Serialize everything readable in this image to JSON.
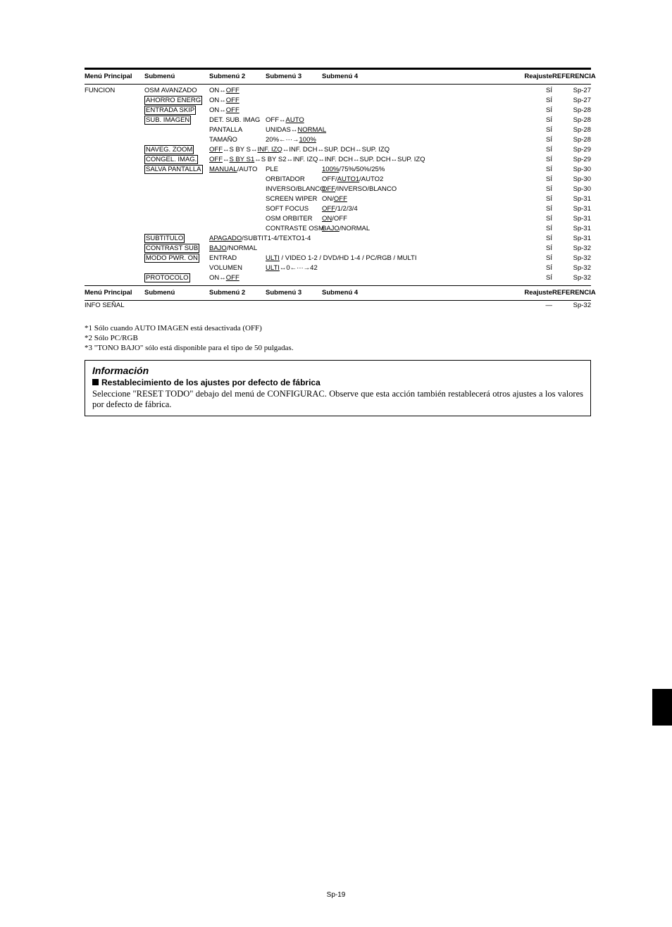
{
  "headers": {
    "c1": "Menú Principal",
    "c2": "Submenú",
    "c3": "Submenú 2",
    "c4": "Submenú 3",
    "c5": "Submenú 4",
    "c6": "Reajuste",
    "c7": "REFERENCIA"
  },
  "funcion_label": "FUNCION",
  "rows": [
    {
      "sub": "OSM AVANZADO",
      "box": false,
      "s2_html": "ON↔<span class='u'>OFF</span>",
      "s3_html": "",
      "s4_html": "",
      "re": "SÍ",
      "ref": "Sp-27"
    },
    {
      "sub": "AHORRO ENERG",
      "box": true,
      "s2_html": "ON↔<span class='u'>OFF</span>",
      "s3_html": "",
      "s4_html": "",
      "re": "SÍ",
      "ref": "Sp-27"
    },
    {
      "sub": "ENTRADA SKIP",
      "box": true,
      "s2_html": "ON↔<span class='u'>OFF</span>",
      "s3_html": "",
      "s4_html": "",
      "re": "SÍ",
      "ref": "Sp-28"
    },
    {
      "sub": "SUB. IMAGEN",
      "box": true,
      "s2_html": "DET. SUB. IMAG",
      "s3_html": "OFF↔<span class='u'>AUTO</span>",
      "s4_html": "",
      "re": "SÍ",
      "ref": "Sp-28"
    },
    {
      "sub": "",
      "box": false,
      "s2_html": "PANTALLA",
      "s3_html": "UNIDAS↔<span class='u'>NORMAL</span>",
      "s4_html": "",
      "re": "SÍ",
      "ref": "Sp-28"
    },
    {
      "sub": "",
      "box": false,
      "s2_html": "TAMAÑO",
      "s3_html": "20%←···→<span class='u'>100%</span>",
      "s4_html": "",
      "re": "SÍ",
      "ref": "Sp-28"
    },
    {
      "sub": "NAVEG. ZOOM",
      "box": true,
      "s2_html": "",
      "s3_html": "",
      "s4_html": "<span class='u'>OFF</span>↔S BY S↔<span class='u'>INF. IZQ</span>↔INF. DCH↔SUP. DCH↔SUP. IZQ",
      "re": "SÍ",
      "ref": "Sp-29",
      "wide": true
    },
    {
      "sub": "CONGEL. IMAG.",
      "box": true,
      "s2_html": "",
      "s3_html": "",
      "s4_html": "<span class='u'>OFF</span>↔<span class='u'>S BY S1</span>↔S BY S2↔INF. IZQ↔INF. DCH↔SUP. DCH↔SUP. IZQ",
      "re": "SÍ",
      "ref": "Sp-29",
      "wide": true
    },
    {
      "sub": "SALVA PANTALLA",
      "box": true,
      "s2_html": "<span class='u'>MANUAL</span>/AUTO",
      "s3_html": "PLE",
      "s4_html": "<span class='u'>100%</span>/75%/50%/25%",
      "re": "SÍ",
      "ref": "Sp-30"
    },
    {
      "sub": "",
      "box": false,
      "s2_html": "",
      "s3_html": "ORBITADOR",
      "s4_html": "OFF/<span class='u'>AUTO1</span>/AUTO2",
      "re": "SÍ",
      "ref": "Sp-30"
    },
    {
      "sub": "",
      "box": false,
      "s2_html": "",
      "s3_html": "INVERSO/BLANCO",
      "s4_html": "<span class='u'>OFF</span>/INVERSO/BLANCO",
      "re": "SÍ",
      "ref": "Sp-30"
    },
    {
      "sub": "",
      "box": false,
      "s2_html": "",
      "s3_html": "SCREEN WIPER",
      "s4_html": "ON/<span class='u'>OFF</span>",
      "re": "SÍ",
      "ref": "Sp-31"
    },
    {
      "sub": "",
      "box": false,
      "s2_html": "",
      "s3_html": "SOFT FOCUS",
      "s4_html": "<span class='u'>OFF</span>/1/2/3/4",
      "re": "SÍ",
      "ref": "Sp-31"
    },
    {
      "sub": "",
      "box": false,
      "s2_html": "",
      "s3_html": "OSM ORBITER",
      "s4_html": "<span class='u'>ON</span>/OFF",
      "re": "SÍ",
      "ref": "Sp-31"
    },
    {
      "sub": "",
      "box": false,
      "s2_html": "",
      "s3_html": "CONTRASTE OSM",
      "s4_html": "<span class='u'>BAJO</span>/NORMAL",
      "re": "SÍ",
      "ref": "Sp-31"
    },
    {
      "sub": "SUBTITULO",
      "box": true,
      "s2_html": "<span class='u'>APAGADO</span>/SUBTIT1-4/TEXTO1-4",
      "s3_html": "",
      "s4_html": "",
      "re": "SÍ",
      "ref": "Sp-31",
      "merge23": true
    },
    {
      "sub": "CONTRAST SUB",
      "box": true,
      "s2_html": "<span class='u'>BAJO</span>/NORMAL",
      "s3_html": "",
      "s4_html": "",
      "re": "SÍ",
      "ref": "Sp-32"
    },
    {
      "sub": "MODO PWR. ON",
      "box": true,
      "s2_html": "ENTRAD",
      "s3_html": "",
      "s4_html": "<span class='u'>ULTI</span> / VIDEO 1-2 / DVD/HD 1-4 / PC/RGB / MULTI",
      "re": "SÍ",
      "ref": "Sp-32",
      "merge34": true
    },
    {
      "sub": "",
      "box": false,
      "s2_html": "VOLUMEN",
      "s3_html": "<span class='u'>ULTI</span>↔0←···→42",
      "s4_html": "",
      "re": "SÍ",
      "ref": "Sp-32",
      "merge34": true
    },
    {
      "sub": "PROTOCOLO",
      "box": true,
      "s2_html": "ON↔<span class='u'>OFF</span>",
      "s3_html": "",
      "s4_html": "",
      "re": "SÍ",
      "ref": "Sp-32"
    }
  ],
  "info_senal": {
    "label": "INFO SEÑAL",
    "re": "—",
    "ref": "Sp-32"
  },
  "notes": [
    "*1  Sólo cuando AUTO IMAGEN está desactivada (OFF)",
    "*2  Sólo PC/RGB",
    "*3  \"TONO BAJO\" sólo está disponible para el tipo de 50 pulgadas."
  ],
  "infobox": {
    "heading": "Información",
    "subheading": "Restablecimiento de los ajustes por defecto de fábrica",
    "body": "Seleccione \"RESET TODO\" debajo del menú de CONFIGURAC. Observe que esta acción también restablecerá otros ajustes a los valores por defecto de fábrica."
  },
  "footer": "Sp-19"
}
